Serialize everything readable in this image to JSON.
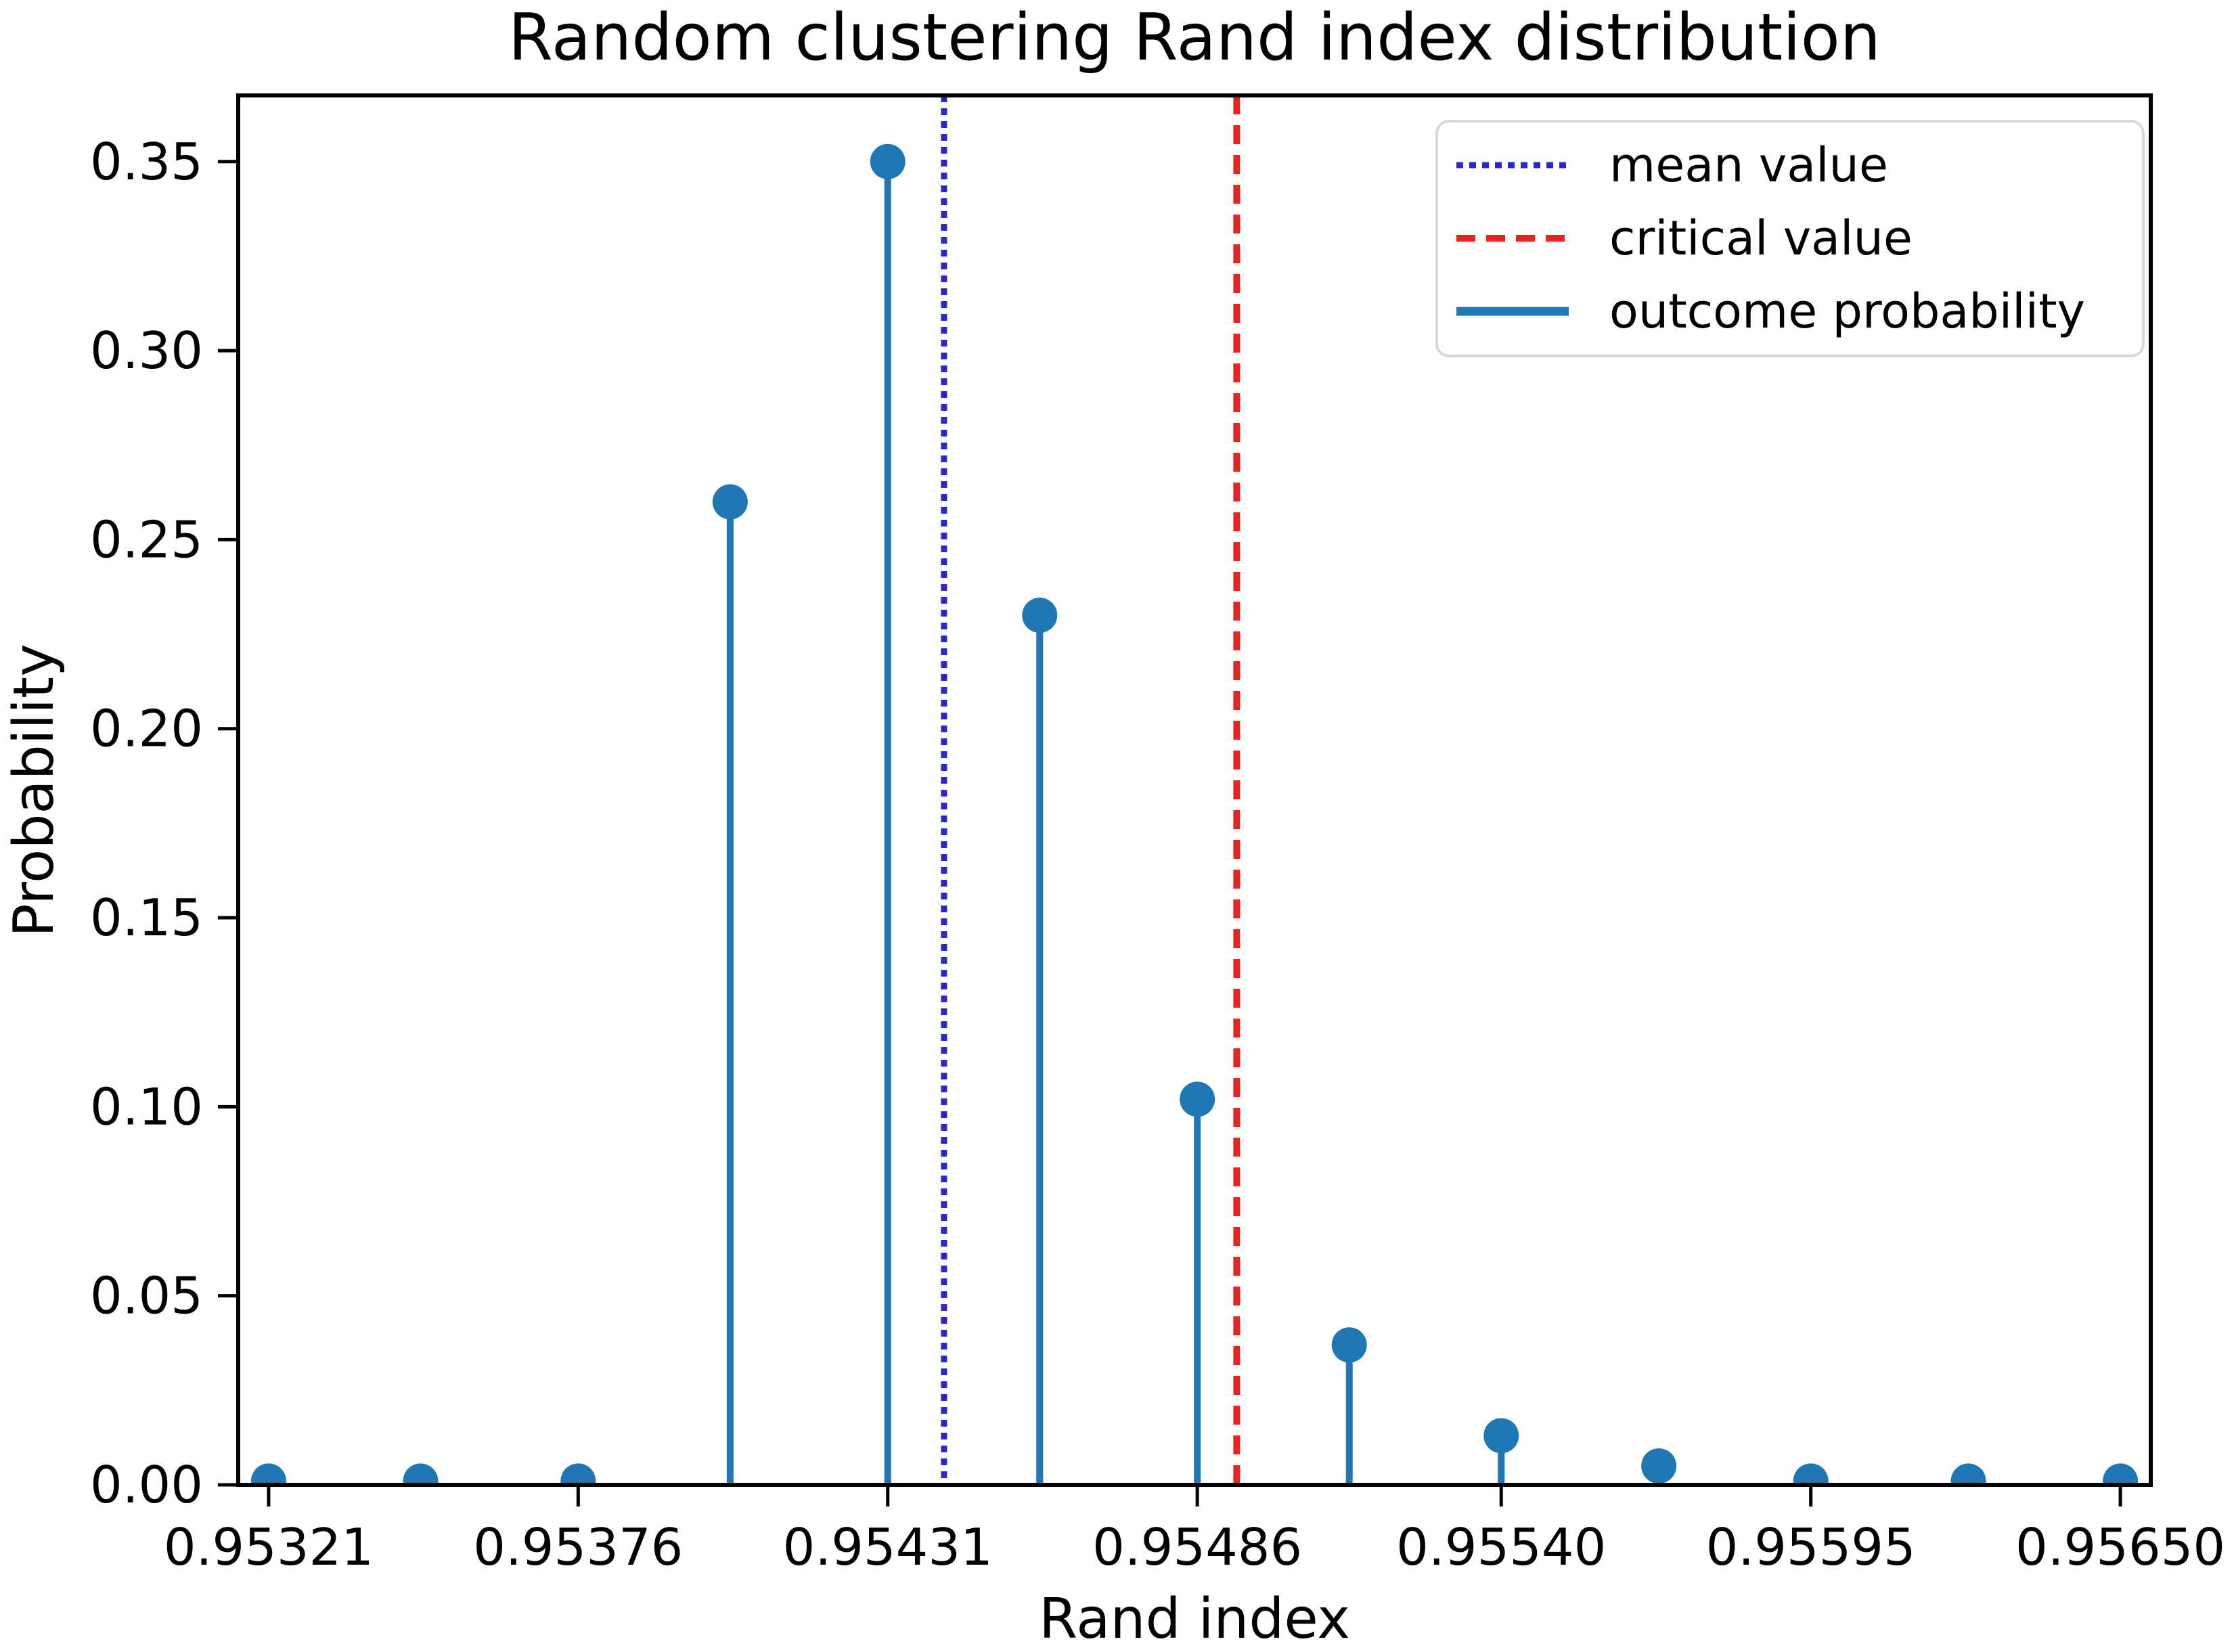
{
  "figure": {
    "title": "Random clustering Rand index distribution",
    "xlabel": "Rand index",
    "ylabel": "Probability"
  },
  "legend": {
    "position": "upper right",
    "items": [
      {
        "label": "mean value",
        "line_style": "dotted",
        "color": "#2828cc"
      },
      {
        "label": "critical value",
        "line_style": "dashed",
        "color": "#e82323"
      },
      {
        "label": "outcome probability",
        "line_style": "solid",
        "color": "#1f77b4"
      }
    ]
  },
  "chart_data": {
    "type": "stem",
    "title": "Random clustering Rand index distribution",
    "xlabel": "Rand index",
    "ylabel": "Probability",
    "x": [
      0.95321,
      0.95348,
      0.95376,
      0.95403,
      0.95431,
      0.95458,
      0.95486,
      0.95513,
      0.9554,
      0.95568,
      0.95595,
      0.95623,
      0.9565
    ],
    "y": [
      0.001,
      0.001,
      0.001,
      0.26,
      0.35,
      0.23,
      0.102,
      0.037,
      0.013,
      0.005,
      0.001,
      0.001,
      0.001
    ],
    "series_name": "outcome probability",
    "mean_value_x": 0.95441,
    "critical_value_x": 0.95493,
    "xtick_labels": [
      "0.95321",
      "0.95376",
      "0.95431",
      "0.95486",
      "0.95540",
      "0.95595",
      "0.95650"
    ],
    "ytick_labels": [
      "0.00",
      "0.05",
      "0.10",
      "0.15",
      "0.20",
      "0.25",
      "0.30",
      "0.35"
    ],
    "xlim": [
      0.953156,
      0.956554
    ],
    "ylim": [
      0.0,
      0.3675
    ],
    "grid": false,
    "legend_position": "upper right",
    "colors": {
      "stem": "#1f77b4",
      "mean_line": "#2828cc",
      "critical_line": "#e82323"
    },
    "marker": "circle"
  }
}
